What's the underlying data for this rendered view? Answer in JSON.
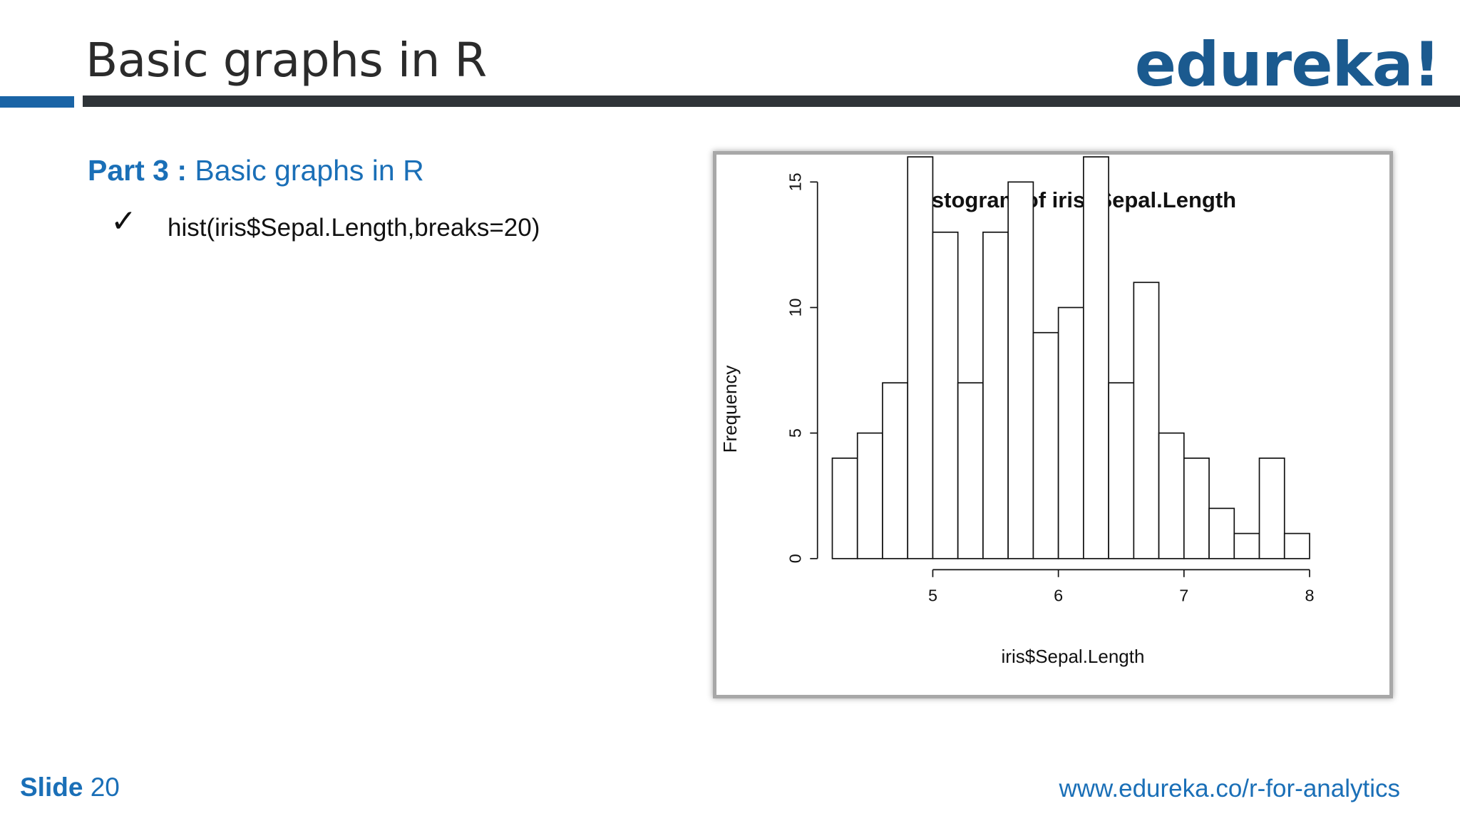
{
  "header": {
    "title": "Basic graphs in R",
    "logo_text": "edureka!",
    "accent_color": "#1a64a6",
    "bar_color": "#2f3438"
  },
  "content": {
    "section_label": "Part 3 :",
    "section_title": "Basic graphs in R",
    "bullet_icon": "checkmark-icon",
    "bullet_text": "hist(iris$Sepal.Length,breaks=20)"
  },
  "chart_data": {
    "type": "bar",
    "title": "Histogram of iris$Sepal.Length",
    "xlabel": "iris$Sepal.Length",
    "ylabel": "Frequency",
    "bin_edges": [
      4.2,
      4.4,
      4.6,
      4.8,
      5.0,
      5.2,
      5.4,
      5.6,
      5.8,
      6.0,
      6.2,
      6.4,
      6.6,
      6.8,
      7.0,
      7.2,
      7.4,
      7.6,
      7.8,
      8.0
    ],
    "values": [
      4,
      5,
      7,
      16,
      13,
      7,
      13,
      15,
      9,
      10,
      16,
      7,
      11,
      5,
      4,
      2,
      1,
      4,
      1
    ],
    "xticks": [
      5,
      6,
      7,
      8
    ],
    "xtick_labels": [
      "5",
      "6",
      "7",
      "8"
    ],
    "yticks": [
      0,
      5,
      10,
      15
    ],
    "ytick_labels": [
      "0",
      "5",
      "10",
      "15"
    ],
    "xlim": [
      4.2,
      8.0
    ],
    "ylim": [
      0,
      16
    ],
    "grid": false
  },
  "footer": {
    "slide_label": "Slide",
    "slide_number": "20",
    "url": "www.edureka.co/r-for-analytics"
  }
}
